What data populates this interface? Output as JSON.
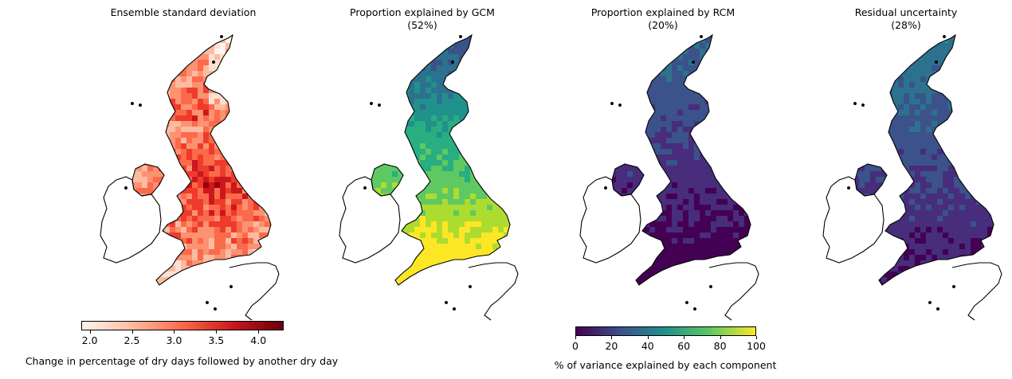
{
  "panels": [
    {
      "title": "Ensemble standard deviation",
      "subtitle": "",
      "colormap": "reds",
      "level": 0.55
    },
    {
      "title": "Proportion explained by GCM",
      "subtitle": "(52%)",
      "colormap": "viridis",
      "level": 0.52
    },
    {
      "title": "Proportion explained by RCM",
      "subtitle": "(20%)",
      "colormap": "viridis",
      "level": 0.2
    },
    {
      "title": "Residual uncertainty",
      "subtitle": "(28%)",
      "colormap": "viridis",
      "level": 0.28
    }
  ],
  "colorbar_sd": {
    "label": "Change in percentage of dry days followed by another dry day",
    "min": 1.9,
    "max": 4.3,
    "ticks": [
      "2.0",
      "2.5",
      "3.0",
      "3.5",
      "4.0"
    ],
    "tick_values": [
      2.0,
      2.5,
      3.0,
      3.5,
      4.0
    ],
    "colors": [
      "#fff5f0",
      "#fcbba1",
      "#fb6a4a",
      "#cb181d",
      "#67000d"
    ]
  },
  "colorbar_var": {
    "label": "% of variance explained by each component",
    "min": 0,
    "max": 100,
    "ticks": [
      "0",
      "20",
      "40",
      "60",
      "80",
      "100"
    ],
    "tick_values": [
      0,
      20,
      40,
      60,
      80,
      100
    ],
    "colors": [
      "#440154",
      "#3b528b",
      "#21918c",
      "#5ec962",
      "#fde725"
    ]
  }
}
